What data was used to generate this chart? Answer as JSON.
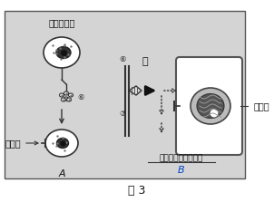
{
  "title": "图 3",
  "label_endocrine": "内分泌细胞",
  "label_hormone": "酶",
  "label_target_left": "靶细胞",
  "label_target_right": "靶细胞",
  "label_activate": "激活细胞的特殊功能",
  "label_A": "A",
  "label_B": "B",
  "bg_color": "#d8d8d8",
  "text_color": "#111111",
  "num6_top": "⑥",
  "num6_mid": "⑥",
  "num7": "⑦"
}
